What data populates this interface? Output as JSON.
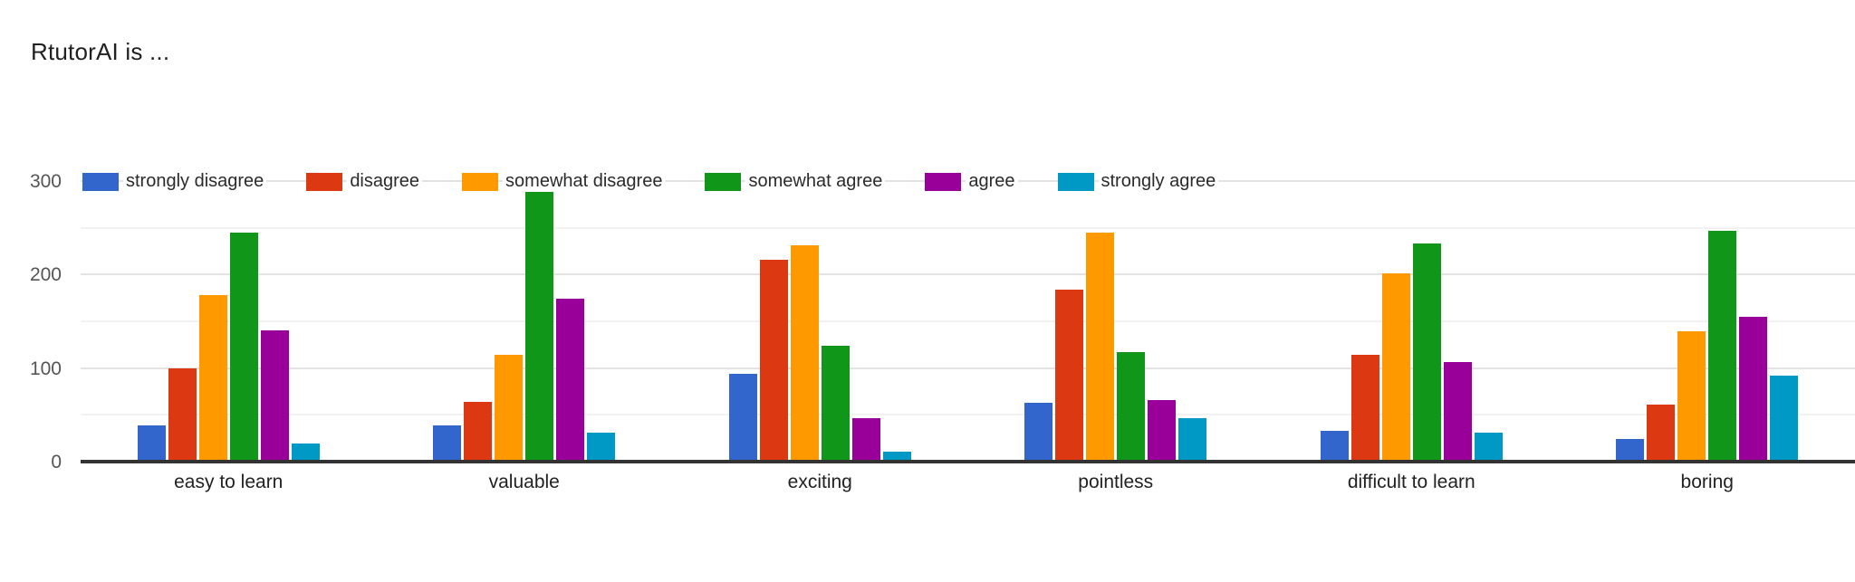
{
  "title": "RtutorAI is ...",
  "colors": {
    "strongly_disagree": "#3366cc",
    "disagree": "#dc3912",
    "somewhat_disagree": "#ff9900",
    "somewhat_agree": "#109618",
    "agree": "#990099",
    "strongly_agree": "#0099c6",
    "major_gridline": "#e3e3e3",
    "minor_gridline": "#f2f2f2",
    "axis_line": "#333333"
  },
  "chart_data": {
    "type": "bar",
    "title": "RtutorAI is ...",
    "categories": [
      "easy to learn",
      "valuable",
      "exciting",
      "pointless",
      "difficult to learn",
      "boring"
    ],
    "series": [
      {
        "name": "strongly disagree",
        "color": "#3366cc",
        "values": [
          38,
          38,
          93,
          62,
          32,
          23
        ]
      },
      {
        "name": "disagree",
        "color": "#dc3912",
        "values": [
          99,
          63,
          215,
          183,
          113,
          60
        ]
      },
      {
        "name": "somewhat disagree",
        "color": "#ff9900",
        "values": [
          177,
          113,
          230,
          244,
          200,
          138
        ]
      },
      {
        "name": "somewhat agree",
        "color": "#109618",
        "values": [
          244,
          294,
          123,
          116,
          232,
          246
        ]
      },
      {
        "name": "agree",
        "color": "#990099",
        "values": [
          139,
          173,
          45,
          65,
          105,
          154
        ]
      },
      {
        "name": "strongly agree",
        "color": "#0099c6",
        "values": [
          18,
          30,
          10,
          45,
          30,
          91
        ]
      }
    ],
    "xlabel": "",
    "ylabel": "",
    "ylim": [
      0,
      300
    ],
    "yticks": [
      0,
      100,
      200,
      300
    ],
    "minor_gridlines": [
      50,
      150,
      250
    ],
    "grid": true,
    "legend_position": "top"
  }
}
